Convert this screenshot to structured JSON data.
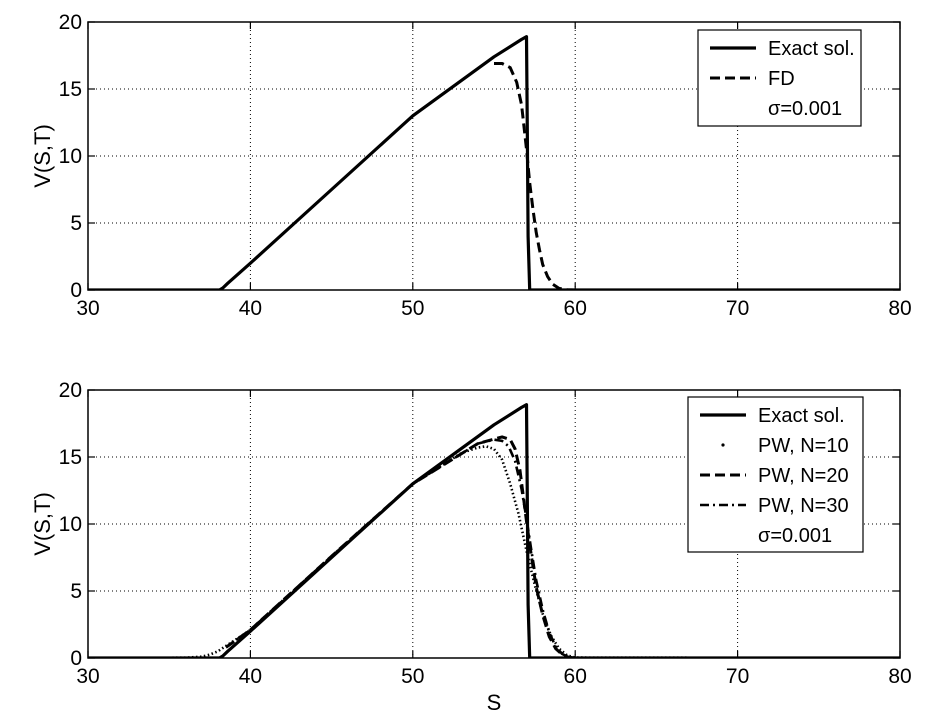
{
  "chart_data": [
    {
      "type": "line",
      "xlabel": "",
      "ylabel": "V(S,T)",
      "xlim": [
        30,
        80
      ],
      "ylim": [
        0,
        20
      ],
      "xticks": [
        "30",
        "40",
        "50",
        "60",
        "70",
        "80"
      ],
      "yticks": [
        "0",
        "5",
        "10",
        "15",
        "20"
      ],
      "grid": true,
      "legend_position": "top-right",
      "legend_note": "σ=0.001",
      "series": [
        {
          "name": "Exact sol.",
          "style": "solid",
          "x": [
            30,
            38.1,
            38.3,
            38.6,
            40,
            45,
            50,
            55,
            56.7,
            57.0,
            57.05,
            57.1,
            57.2,
            80
          ],
          "y": [
            0,
            0,
            0.15,
            0.5,
            2.0,
            7.5,
            13.0,
            17.4,
            18.7,
            18.9,
            12,
            4,
            0,
            0
          ]
        },
        {
          "name": "FD",
          "style": "dashed",
          "x": [
            55.0,
            55.5,
            56.0,
            56.4,
            56.7,
            57.0,
            57.2,
            57.4,
            57.6,
            57.8,
            58.0,
            58.3,
            58.6,
            59.0,
            59.5,
            60
          ],
          "y": [
            16.9,
            16.9,
            16.6,
            15.5,
            13.8,
            10.5,
            8.0,
            6.0,
            4.3,
            3.0,
            1.9,
            1.0,
            0.45,
            0.12,
            0.02,
            0
          ]
        }
      ]
    },
    {
      "type": "line",
      "xlabel": "S",
      "ylabel": "V(S,T)",
      "xlim": [
        30,
        80
      ],
      "ylim": [
        0,
        20
      ],
      "xticks": [
        "30",
        "40",
        "50",
        "60",
        "70",
        "80"
      ],
      "yticks": [
        "0",
        "5",
        "10",
        "15",
        "20"
      ],
      "grid": true,
      "legend_position": "top-right",
      "legend_note": "σ=0.001",
      "series": [
        {
          "name": "Exact sol.",
          "style": "solid",
          "x": [
            30,
            38.1,
            38.3,
            38.6,
            40,
            45,
            50,
            55,
            56.7,
            57.0,
            57.05,
            57.1,
            57.2,
            80
          ],
          "y": [
            0,
            0,
            0.15,
            0.5,
            2.0,
            7.5,
            13.0,
            17.4,
            18.7,
            18.9,
            12,
            4,
            0,
            0
          ]
        },
        {
          "name": "PW, N=10",
          "style": "dotted",
          "x": [
            30,
            36,
            37,
            37.5,
            38.0,
            38.5,
            39,
            40,
            45,
            50,
            53,
            54.0,
            54.5,
            55.0,
            55.5,
            56.0,
            56.5,
            57.0,
            57.5,
            58.0,
            58.5,
            59.0,
            59.5,
            60,
            80
          ],
          "y": [
            0,
            0.02,
            0.1,
            0.25,
            0.5,
            0.9,
            1.3,
            2.1,
            7.6,
            13.0,
            15.3,
            15.7,
            15.8,
            15.6,
            14.8,
            13.0,
            10.8,
            8.0,
            5.5,
            3.3,
            1.7,
            0.7,
            0.2,
            0.03,
            0
          ]
        },
        {
          "name": "PW, N=20",
          "style": "dashed",
          "x": [
            38.5,
            40,
            45,
            50,
            54,
            55.5,
            56.0,
            56.3,
            56.6,
            57.0,
            57.3,
            57.6,
            58.0,
            58.4,
            58.8,
            59.2,
            59.6,
            60
          ],
          "y": [
            0.8,
            2.1,
            7.6,
            13.0,
            16.0,
            16.5,
            16.3,
            15.6,
            14.0,
            10.2,
            7.6,
            5.3,
            3.2,
            1.6,
            0.7,
            0.25,
            0.05,
            0
          ]
        },
        {
          "name": "PW, N=30",
          "style": "dashdot",
          "x": [
            38.5,
            40,
            45,
            50,
            54,
            55.0,
            55.5,
            55.9,
            56.3,
            56.7,
            57.0,
            57.3,
            57.6,
            58.0,
            58.4,
            58.8,
            59.2,
            59.6,
            60
          ],
          "y": [
            0.8,
            2.1,
            7.6,
            13.0,
            16.0,
            16.3,
            16.2,
            15.8,
            14.7,
            12.6,
            10.4,
            8.0,
            5.8,
            3.6,
            1.9,
            0.85,
            0.3,
            0.07,
            0
          ]
        }
      ]
    }
  ]
}
